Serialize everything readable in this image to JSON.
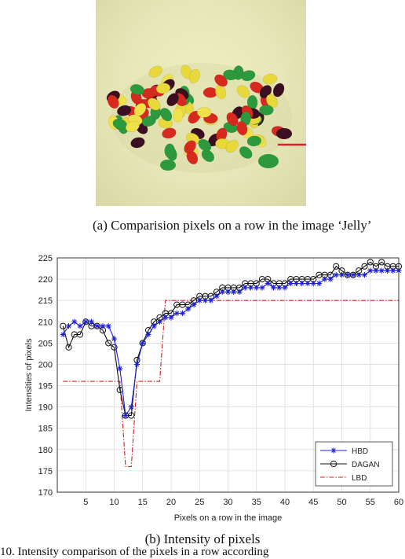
{
  "figure": {
    "caption_a": "(a) Comparision pixels on a row in the image ‘Jelly’",
    "caption_b": "(b) Intensity of pixels",
    "truncated_text": "10. Intensity comparison of the pixels in a row according"
  },
  "photo": {
    "subject": "jelly beans",
    "colors": {
      "background": "#e8e8b8",
      "marker_line": "#e0202a"
    }
  },
  "chart_data": {
    "type": "line",
    "xlabel": "Pixels on a row in the image",
    "ylabel": "Intensities of pixels",
    "xlim": [
      0,
      60
    ],
    "ylim": [
      170,
      225
    ],
    "xticks": [
      5,
      10,
      15,
      20,
      25,
      30,
      35,
      40,
      45,
      50,
      55,
      60
    ],
    "yticks": [
      170,
      175,
      180,
      185,
      190,
      195,
      200,
      205,
      210,
      215,
      220,
      225
    ],
    "grid": true,
    "legend_position": "bottom-right",
    "series": [
      {
        "name": "HBD",
        "color": "#1f1fd6",
        "marker": "*",
        "style": "solid",
        "values": [
          [
            1,
            207
          ],
          [
            2,
            209
          ],
          [
            3,
            210
          ],
          [
            4,
            209
          ],
          [
            5,
            210
          ],
          [
            6,
            210
          ],
          [
            7,
            209
          ],
          [
            8,
            209
          ],
          [
            9,
            209
          ],
          [
            10,
            206
          ],
          [
            11,
            199
          ],
          [
            12,
            188
          ],
          [
            13,
            190
          ],
          [
            14,
            200
          ],
          [
            15,
            205
          ],
          [
            16,
            207
          ],
          [
            17,
            209
          ],
          [
            18,
            210
          ],
          [
            19,
            211
          ],
          [
            20,
            211
          ],
          [
            21,
            212
          ],
          [
            22,
            212
          ],
          [
            23,
            213
          ],
          [
            24,
            214
          ],
          [
            25,
            215
          ],
          [
            26,
            215
          ],
          [
            27,
            215
          ],
          [
            28,
            216
          ],
          [
            29,
            217
          ],
          [
            30,
            217
          ],
          [
            31,
            217
          ],
          [
            32,
            217
          ],
          [
            33,
            218
          ],
          [
            34,
            218
          ],
          [
            35,
            218
          ],
          [
            36,
            218
          ],
          [
            37,
            219
          ],
          [
            38,
            218
          ],
          [
            39,
            218
          ],
          [
            40,
            218
          ],
          [
            41,
            219
          ],
          [
            42,
            219
          ],
          [
            43,
            219
          ],
          [
            44,
            219
          ],
          [
            45,
            219
          ],
          [
            46,
            219
          ],
          [
            47,
            220
          ],
          [
            48,
            220
          ],
          [
            49,
            221
          ],
          [
            50,
            221
          ],
          [
            51,
            221
          ],
          [
            52,
            221
          ],
          [
            53,
            221
          ],
          [
            54,
            221
          ],
          [
            55,
            222
          ],
          [
            56,
            222
          ],
          [
            57,
            222
          ],
          [
            58,
            222
          ],
          [
            59,
            222
          ],
          [
            60,
            222
          ]
        ]
      },
      {
        "name": "DAGAN",
        "color": "#111111",
        "marker": "o",
        "style": "solid",
        "values": [
          [
            1,
            209
          ],
          [
            2,
            204
          ],
          [
            3,
            207
          ],
          [
            4,
            207
          ],
          [
            5,
            210
          ],
          [
            6,
            209
          ],
          [
            7,
            209
          ],
          [
            8,
            208
          ],
          [
            9,
            205
          ],
          [
            10,
            204
          ],
          [
            11,
            194
          ],
          [
            12,
            188
          ],
          [
            13,
            188
          ],
          [
            14,
            201
          ],
          [
            15,
            205
          ],
          [
            16,
            208
          ],
          [
            17,
            210
          ],
          [
            18,
            211
          ],
          [
            19,
            212
          ],
          [
            20,
            212
          ],
          [
            21,
            214
          ],
          [
            22,
            214
          ],
          [
            23,
            214
          ],
          [
            24,
            215
          ],
          [
            25,
            216
          ],
          [
            26,
            216
          ],
          [
            27,
            216
          ],
          [
            28,
            217
          ],
          [
            29,
            218
          ],
          [
            30,
            218
          ],
          [
            31,
            218
          ],
          [
            32,
            218
          ],
          [
            33,
            219
          ],
          [
            34,
            219
          ],
          [
            35,
            219
          ],
          [
            36,
            220
          ],
          [
            37,
            220
          ],
          [
            38,
            219
          ],
          [
            39,
            219
          ],
          [
            40,
            219
          ],
          [
            41,
            220
          ],
          [
            42,
            220
          ],
          [
            43,
            220
          ],
          [
            44,
            220
          ],
          [
            45,
            220
          ],
          [
            46,
            221
          ],
          [
            47,
            221
          ],
          [
            48,
            221
          ],
          [
            49,
            223
          ],
          [
            50,
            222
          ],
          [
            51,
            221
          ],
          [
            52,
            221
          ],
          [
            53,
            222
          ],
          [
            54,
            223
          ],
          [
            55,
            224
          ],
          [
            56,
            223
          ],
          [
            57,
            224
          ],
          [
            58,
            223
          ],
          [
            59,
            223
          ],
          [
            60,
            223
          ]
        ]
      },
      {
        "name": "LBD",
        "color": "#cc2020",
        "marker": "",
        "style": "dash-dot",
        "values": [
          [
            1,
            196
          ],
          [
            11,
            196
          ],
          [
            12,
            176
          ],
          [
            13,
            176
          ],
          [
            14,
            196
          ],
          [
            18,
            196
          ],
          [
            19,
            215
          ],
          [
            60,
            215
          ]
        ]
      }
    ]
  }
}
